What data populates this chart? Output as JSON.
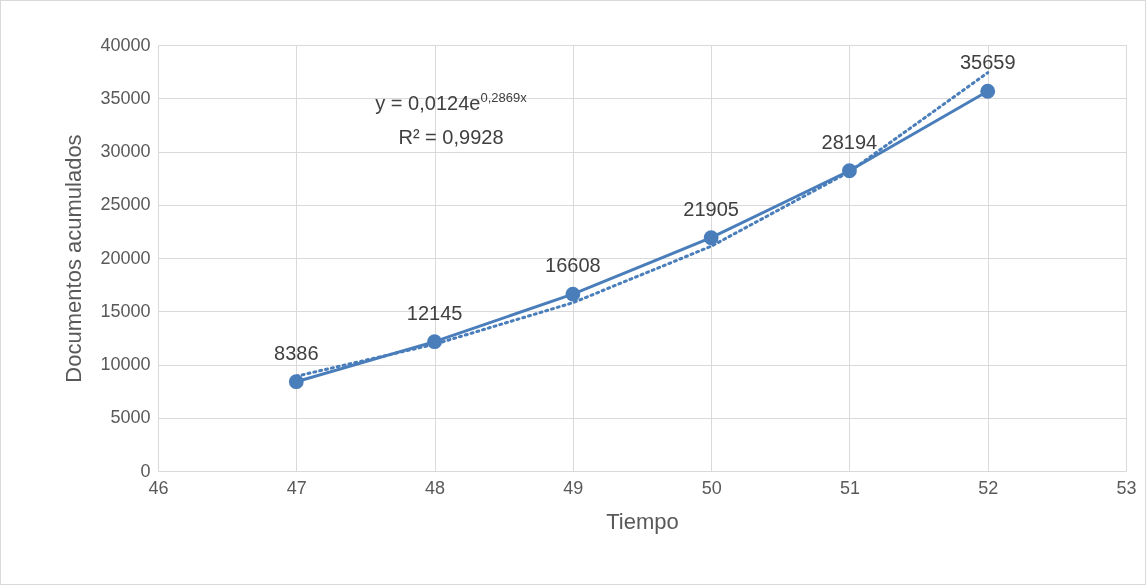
{
  "chart_data": {
    "type": "line",
    "xlabel": "Tiempo",
    "ylabel": "Documentos acumulados",
    "x": [
      47,
      48,
      49,
      50,
      51,
      52
    ],
    "series": [
      {
        "color": "#4a7ebb",
        "values": [
          8386,
          12145,
          16608,
          21905,
          28194,
          35659
        ],
        "value_labels": [
          "8386",
          "12145",
          "16608",
          "21905",
          "28194",
          "35659"
        ],
        "marker": "circle",
        "line_style": "solid"
      },
      {
        "type": "line",
        "color": "#4a7ebb",
        "x": [
          47,
          48,
          49,
          50,
          51,
          52
        ],
        "values": [
          8900,
          11900,
          15800,
          21100,
          28100,
          37400
        ],
        "marker": "none",
        "line_style": "dotted"
      }
    ],
    "xlim": [
      46,
      53
    ],
    "xticks": [
      46,
      47,
      48,
      49,
      50,
      51,
      52,
      53
    ],
    "ylim": [
      0,
      40000
    ],
    "yticks": [
      0,
      5000,
      10000,
      15000,
      20000,
      25000,
      30000,
      35000,
      40000
    ],
    "grid": true,
    "annotations": [
      "y = 0,0124e$^{0,2869x}$",
      "R² = 0,9928"
    ]
  }
}
